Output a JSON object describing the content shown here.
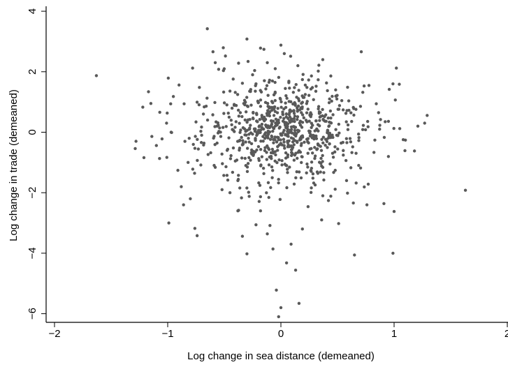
{
  "chart_data": {
    "type": "scatter",
    "title": "",
    "xlabel": "Log change in sea distance (demeaned)",
    "ylabel": "Log change in trade (demeaned)",
    "xlim": [
      -2,
      2
    ],
    "ylim": [
      -6.2,
      4
    ],
    "x_ticks": [
      -2,
      -1,
      0,
      1,
      2
    ],
    "x_tick_labels": [
      "−2",
      "−1",
      "0",
      "1",
      "2"
    ],
    "y_ticks": [
      -6,
      -4,
      -2,
      0,
      2,
      4
    ],
    "y_tick_labels": [
      "−6",
      "−4",
      "−2",
      "0",
      "2",
      "4"
    ],
    "grid": false,
    "legend": "none",
    "marker_color": "#595959",
    "series": [
      {
        "points": [
          [
            -1.63,
            1.87
          ],
          [
            -1.22,
            0.83
          ],
          [
            -1.28,
            -0.3
          ],
          [
            -1.21,
            -0.84
          ],
          [
            -1.07,
            0.66
          ],
          [
            -0.99,
            -3.0
          ],
          [
            -0.95,
            1.18
          ],
          [
            -0.9,
            1.56
          ],
          [
            -0.88,
            -1.8
          ],
          [
            -0.86,
            -2.4
          ],
          [
            -0.81,
            -0.2
          ],
          [
            -0.8,
            -2.2
          ],
          [
            -0.78,
            2.12
          ],
          [
            -0.76,
            -3.18
          ],
          [
            -0.74,
            -3.42
          ],
          [
            -0.72,
            1.48
          ],
          [
            -0.66,
            0.86
          ],
          [
            -0.65,
            3.42
          ],
          [
            -0.6,
            2.66
          ],
          [
            -0.58,
            2.3
          ],
          [
            -0.55,
            2.08
          ],
          [
            -0.52,
            -1.9
          ],
          [
            -0.49,
            2.52
          ],
          [
            -0.45,
            1.36
          ],
          [
            -0.42,
            -0.52
          ],
          [
            -0.38,
            -1.6
          ],
          [
            -0.34,
            1.62
          ],
          [
            -0.3,
            3.08
          ],
          [
            -0.29,
            2.34
          ],
          [
            -0.25,
            1.9
          ],
          [
            -0.22,
            1.6
          ],
          [
            -0.18,
            2.78
          ],
          [
            -0.15,
            2.74
          ],
          [
            -0.12,
            2.3
          ],
          [
            -0.1,
            1.72
          ],
          [
            -0.08,
            1.02
          ],
          [
            -0.05,
            2.1
          ],
          [
            0.0,
            2.88
          ],
          [
            0.03,
            2.6
          ],
          [
            0.07,
            1.64
          ],
          [
            0.11,
            1.32
          ],
          [
            0.15,
            2.2
          ],
          [
            0.19,
            1.74
          ],
          [
            0.23,
            1.48
          ],
          [
            0.27,
            1.86
          ],
          [
            0.33,
            2.02
          ],
          [
            0.37,
            2.4
          ],
          [
            0.43,
            1.1
          ],
          [
            0.49,
            1.2
          ],
          [
            0.55,
            0.74
          ],
          [
            0.64,
            0.82
          ],
          [
            0.71,
            2.66
          ],
          [
            0.77,
            0.18
          ],
          [
            0.83,
            -0.26
          ],
          [
            0.88,
            0.42
          ],
          [
            0.95,
            0.36
          ],
          [
            0.99,
            1.6
          ],
          [
            1.02,
            2.12
          ],
          [
            1.05,
            0.12
          ],
          [
            1.1,
            -0.26
          ],
          [
            1.18,
            -0.62
          ],
          [
            1.21,
            0.2
          ],
          [
            1.27,
            0.3
          ],
          [
            1.63,
            -1.92
          ],
          [
            0.99,
            -4.0
          ],
          [
            1.0,
            -2.62
          ],
          [
            0.91,
            -2.36
          ],
          [
            0.76,
            -2.4
          ],
          [
            0.64,
            -2.34
          ],
          [
            0.51,
            -3.02
          ],
          [
            0.42,
            -2.26
          ],
          [
            0.36,
            -2.9
          ],
          [
            0.29,
            -1.68
          ],
          [
            0.24,
            -2.46
          ],
          [
            0.19,
            -3.2
          ],
          [
            0.13,
            -4.56
          ],
          [
            0.09,
            -3.7
          ],
          [
            0.05,
            -4.32
          ],
          [
            0.0,
            -5.8
          ],
          [
            -0.02,
            -6.1
          ],
          [
            -0.04,
            -5.22
          ],
          [
            0.16,
            -5.66
          ],
          [
            -0.07,
            -3.86
          ],
          [
            -0.12,
            -3.36
          ],
          [
            -0.18,
            -2.6
          ],
          [
            -0.22,
            -3.06
          ],
          [
            -0.28,
            -2.12
          ],
          [
            -0.3,
            -4.02
          ],
          [
            -0.34,
            -3.44
          ],
          [
            -0.38,
            -2.6
          ],
          [
            -0.45,
            -2.0
          ],
          [
            0.65,
            -4.06
          ],
          [
            0.48,
            -1.26
          ],
          [
            0.58,
            -1.6
          ],
          [
            -0.58,
            -1.16
          ],
          [
            -0.62,
            -0.68
          ],
          [
            -0.7,
            -0.1
          ],
          [
            -0.75,
            0.34
          ],
          [
            -0.82,
            -1.0
          ],
          [
            -0.91,
            -1.26
          ],
          [
            -0.97,
            0.0
          ],
          [
            -1.01,
            0.3
          ],
          [
            -1.05,
            -0.22
          ],
          [
            -1.1,
            -0.44
          ],
          [
            -1.14,
            -0.14
          ]
        ]
      }
    ]
  }
}
